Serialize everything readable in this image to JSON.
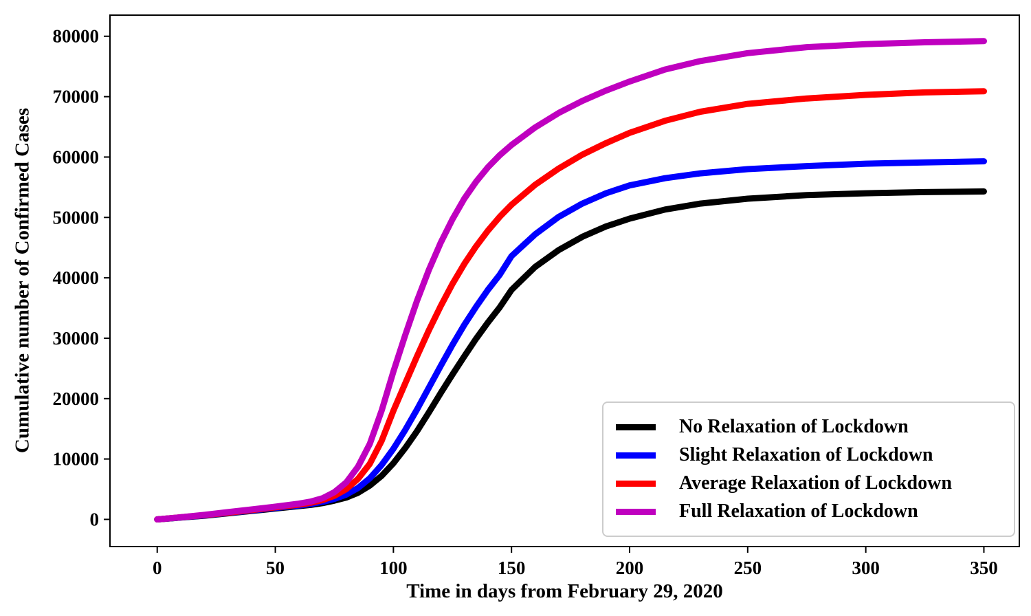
{
  "chart_data": {
    "type": "line",
    "title": "",
    "xlabel": "Time in days from February 29, 2020",
    "ylabel": "Cumulative number of Confirmed Cases",
    "xlim": [
      -20,
      365
    ],
    "ylim": [
      -4500,
      83500
    ],
    "xticks": [
      0,
      50,
      100,
      150,
      200,
      250,
      300,
      350
    ],
    "yticks": [
      0,
      10000,
      20000,
      30000,
      40000,
      50000,
      60000,
      70000,
      80000
    ],
    "grid": false,
    "legend_position": "lower right",
    "line_width": 9,
    "frame_color": "#000000",
    "x": [
      0,
      10,
      20,
      30,
      40,
      50,
      60,
      65,
      70,
      75,
      80,
      85,
      90,
      95,
      100,
      105,
      110,
      115,
      120,
      125,
      130,
      135,
      140,
      145,
      150,
      160,
      170,
      180,
      190,
      200,
      215,
      230,
      250,
      275,
      300,
      325,
      350
    ],
    "series": [
      {
        "name": "No Relaxation of Lockdown",
        "color": "#000000",
        "values": [
          0,
          300,
          600,
          1000,
          1400,
          1800,
          2200,
          2400,
          2700,
          3100,
          3600,
          4400,
          5600,
          7200,
          9300,
          11800,
          14600,
          17700,
          20900,
          24000,
          27000,
          29900,
          32600,
          35100,
          38000,
          41800,
          44600,
          46800,
          48500,
          49800,
          51300,
          52300,
          53100,
          53700,
          54000,
          54200,
          54300
        ]
      },
      {
        "name": "Slight Relaxation of Lockdown",
        "color": "#0000FF",
        "values": [
          0,
          320,
          650,
          1050,
          1450,
          1900,
          2300,
          2550,
          2900,
          3400,
          4100,
          5200,
          6800,
          9000,
          11700,
          14800,
          18200,
          21800,
          25400,
          28900,
          32200,
          35200,
          38000,
          40500,
          43600,
          47200,
          50100,
          52300,
          54000,
          55300,
          56500,
          57300,
          58000,
          58500,
          58900,
          59100,
          59300
        ]
      },
      {
        "name": "Average Relaxation of Lockdown",
        "color": "#FF0000",
        "values": [
          0,
          350,
          700,
          1100,
          1550,
          2000,
          2450,
          2750,
          3200,
          3900,
          5000,
          6700,
          9200,
          13000,
          18000,
          22500,
          27000,
          31300,
          35300,
          39000,
          42300,
          45200,
          47800,
          50100,
          52100,
          55400,
          58100,
          60400,
          62300,
          64000,
          66000,
          67500,
          68800,
          69700,
          70300,
          70700,
          70900
        ]
      },
      {
        "name": "Full Relaxation of Lockdown",
        "color": "#BF00BF",
        "values": [
          0,
          350,
          750,
          1200,
          1650,
          2100,
          2600,
          2950,
          3500,
          4500,
          6100,
          8700,
          12500,
          18000,
          24500,
          30500,
          36200,
          41300,
          45800,
          49700,
          53100,
          55900,
          58300,
          60300,
          62000,
          64900,
          67300,
          69300,
          71000,
          72500,
          74500,
          75900,
          77200,
          78200,
          78700,
          79000,
          79200
        ]
      }
    ]
  }
}
